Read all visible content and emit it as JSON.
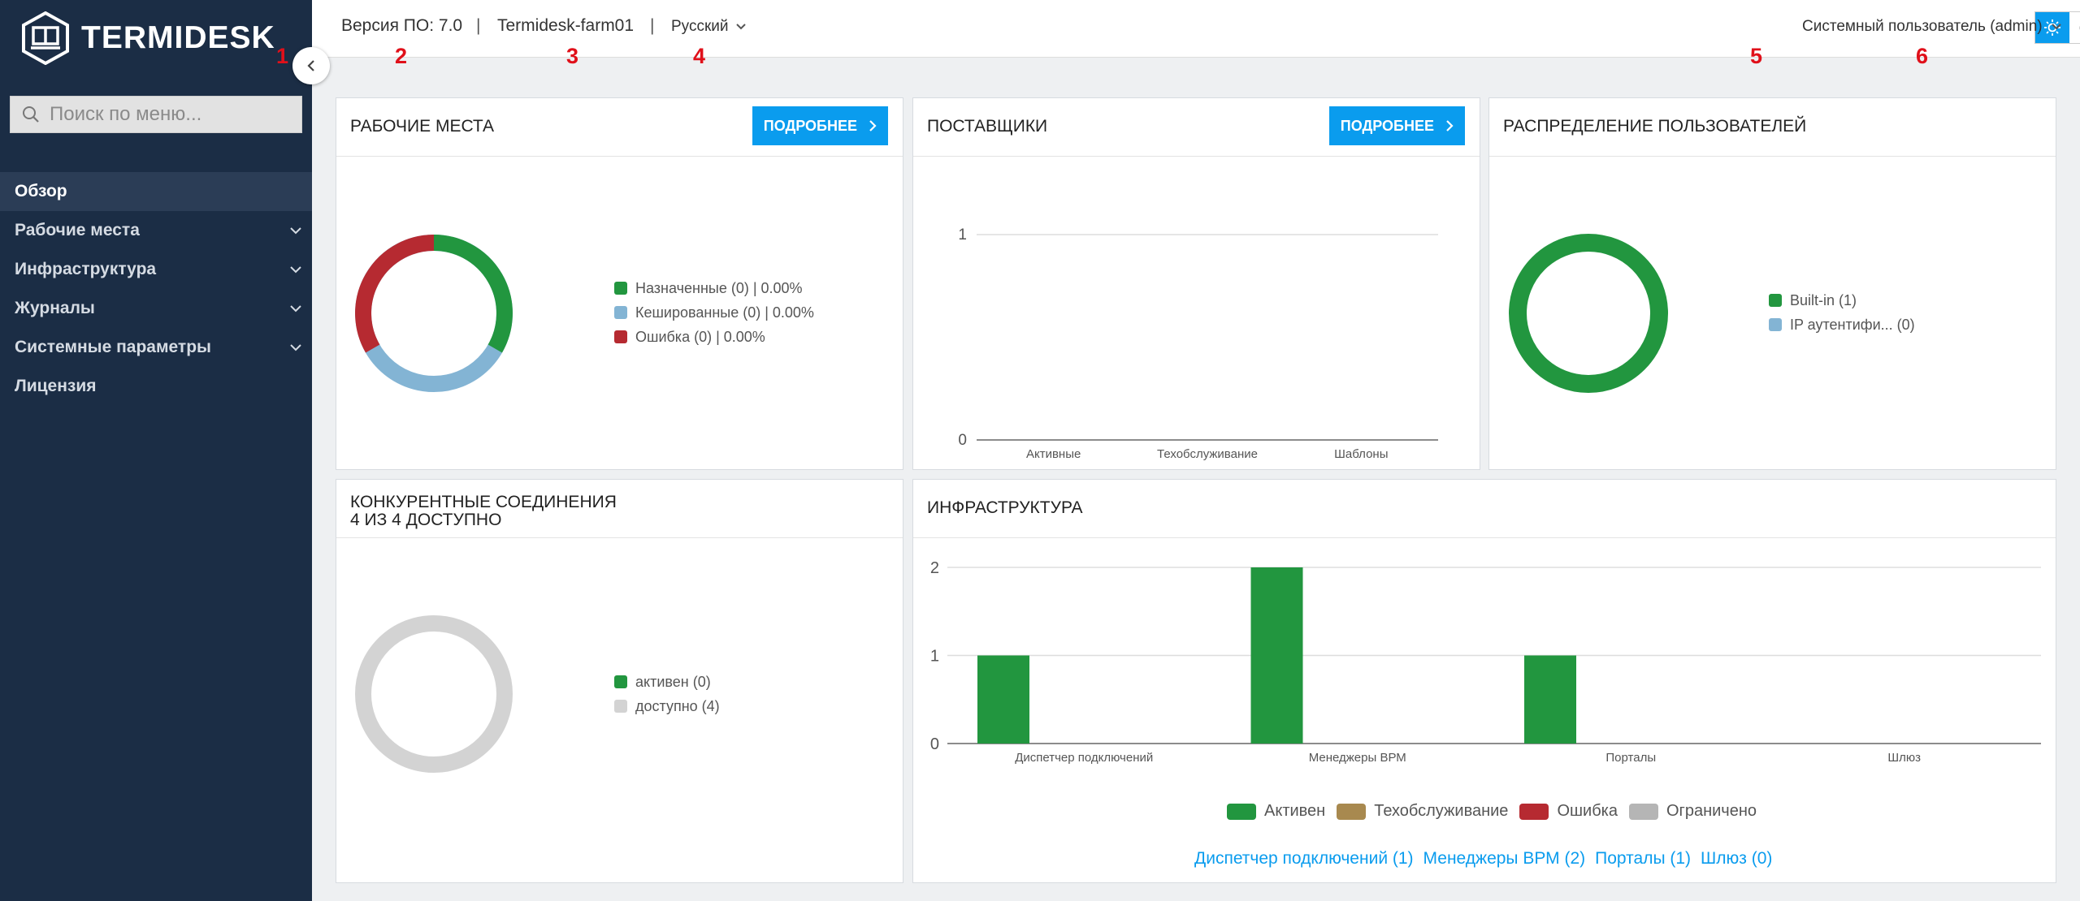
{
  "app": {
    "logo_text": "TERMIDESK"
  },
  "sidebar": {
    "search_placeholder": "Поиск по меню...",
    "items": [
      {
        "label": "Обзор",
        "active": true,
        "expandable": false
      },
      {
        "label": "Рабочие места",
        "expandable": true
      },
      {
        "label": "Инфраструктура",
        "expandable": true
      },
      {
        "label": "Журналы",
        "expandable": true
      },
      {
        "label": "Системные параметры",
        "expandable": true
      },
      {
        "label": "Лицензия",
        "expandable": false
      }
    ]
  },
  "header": {
    "version": "Версия ПО: 7.0",
    "sep": "|",
    "farm": "Termidesk-farm01",
    "language": "Русский",
    "user": "Системный пользователь (admin)"
  },
  "markers": [
    "1",
    "2",
    "3",
    "4",
    "5",
    "6"
  ],
  "cards": {
    "workplaces": {
      "title": "РАБОЧИЕ МЕСТА",
      "button": "ПОДРОБНЕЕ",
      "legend": [
        {
          "label": "Назначенные (0) | 0.00%",
          "color": "#22963f"
        },
        {
          "label": "Кешированные (0) | 0.00%",
          "color": "#83b4d4"
        },
        {
          "label": "Ошибка (0) | 0.00%",
          "color": "#b62a31"
        }
      ]
    },
    "providers": {
      "title": "ПОСТАВЩИКИ",
      "button": "ПОДРОБНЕЕ"
    },
    "users": {
      "title": "РАСПРЕДЕЛЕНИЕ ПОЛЬЗОВАТЕЛЕЙ",
      "legend": [
        {
          "label": "Built-in (1)",
          "color": "#22963f"
        },
        {
          "label": "IP аутентифи... (0)",
          "color": "#83b4d4"
        }
      ]
    },
    "connections": {
      "title_line1": "КОНКУРЕНТНЫЕ СОЕДИНЕНИЯ",
      "title_line2": "4 ИЗ 4 ДОСТУПНО",
      "legend": [
        {
          "label": "активен (0)",
          "color": "#22963f"
        },
        {
          "label": "доступно (4)",
          "color": "#d3d3d3"
        }
      ]
    },
    "infrastructure": {
      "title": "ИНФРАСТРУКТУРА",
      "legend": [
        {
          "label": "Активен",
          "color": "#22963f"
        },
        {
          "label": "Техобслуживание",
          "color": "#a8894f"
        },
        {
          "label": "Ошибка",
          "color": "#b62a31"
        },
        {
          "label": "Ограничено",
          "color": "#b5b5b5"
        }
      ],
      "links": [
        "Диспетчер подключений (1)",
        "Менеджеры ВРМ (2)",
        "Порталы (1)",
        "Шлюз (0)"
      ]
    }
  },
  "chart_data": [
    {
      "type": "pie",
      "categories": [
        "Назначенные",
        "Кешированные",
        "Ошибка"
      ],
      "values": [
        0,
        0,
        0
      ],
      "note_visual": "equal thirds shown when all zero"
    },
    {
      "type": "line",
      "categories": [
        "Активные",
        "Техобслуживание",
        "Шаблоны"
      ],
      "values": [
        0,
        0,
        0
      ],
      "ylim": [
        0,
        1
      ],
      "yticks": [
        "0",
        "1"
      ]
    },
    {
      "type": "pie",
      "categories": [
        "Built-in",
        "IP аутентифи..."
      ],
      "values": [
        1,
        0
      ]
    },
    {
      "type": "pie",
      "categories": [
        "активен",
        "доступно"
      ],
      "values": [
        0,
        4
      ]
    },
    {
      "type": "bar",
      "categories": [
        "Диспетчер подключений",
        "Менеджеры ВРМ",
        "Порталы",
        "Шлюз"
      ],
      "series": [
        {
          "name": "Активен",
          "values": [
            1,
            2,
            1,
            0
          ]
        }
      ],
      "ylim": [
        0,
        2
      ],
      "yticks": [
        "0",
        "1",
        "2"
      ]
    }
  ]
}
